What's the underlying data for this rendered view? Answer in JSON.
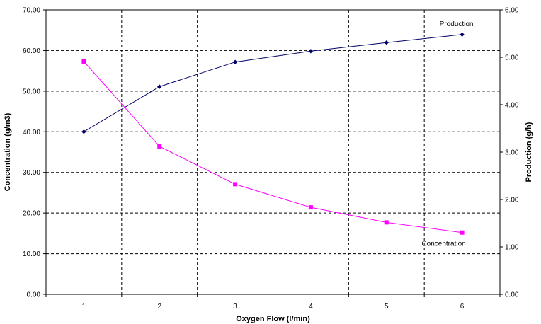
{
  "chart_data": {
    "type": "line",
    "x": [
      1,
      2,
      3,
      4,
      5,
      6
    ],
    "xlabel": "Oxygen Flow (l/min)",
    "ylabel_left": "Concentration (g/m3)",
    "ylabel_right": "Production (g/h)",
    "ylim_left": [
      0,
      70
    ],
    "ylim_right": [
      0,
      6
    ],
    "yticks_left": [
      "0.00",
      "10.00",
      "20.00",
      "30.00",
      "40.00",
      "50.00",
      "60.00",
      "70.00"
    ],
    "yticks_right": [
      "0.00",
      "1.00",
      "2.00",
      "3.00",
      "4.00",
      "5.00",
      "6.00"
    ],
    "xticks": [
      "1",
      "2",
      "3",
      "4",
      "5",
      "6"
    ],
    "grid": "dashed",
    "series": [
      {
        "name": "Production",
        "axis": "right",
        "color": "#000066",
        "marker": "diamond",
        "values": [
          3.43,
          4.38,
          4.9,
          5.13,
          5.31,
          5.48
        ]
      },
      {
        "name": "Concentration",
        "axis": "left",
        "color": "#ff00ff",
        "marker": "square",
        "values": [
          57.3,
          36.4,
          27.1,
          21.4,
          17.7,
          15.2
        ]
      }
    ]
  }
}
